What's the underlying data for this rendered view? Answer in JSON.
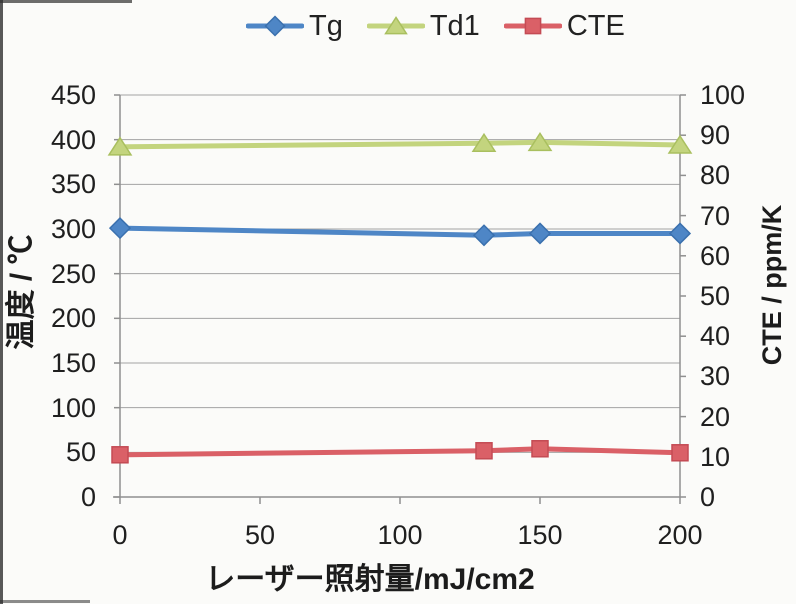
{
  "chart_data": {
    "type": "line",
    "title": "",
    "xlabel": "レーザー照射量/mJ/cm2",
    "ylabel_left": "温度 / ℃",
    "ylabel_right": "CTE / ppm/K",
    "x": [
      0,
      130,
      150,
      200
    ],
    "series": [
      {
        "name": "Tg",
        "axis": "left",
        "values": [
          301,
          293,
          295,
          295
        ],
        "color": "#4e86c6",
        "border": "#3a70ae",
        "marker": "diamond"
      },
      {
        "name": "Td1",
        "axis": "left",
        "values": [
          392,
          396,
          397,
          394
        ],
        "color": "#c3d47e",
        "border": "#a9bf5f",
        "marker": "triangle"
      },
      {
        "name": "CTE",
        "axis": "right",
        "values": [
          10.5,
          11.5,
          12,
          11
        ],
        "color": "#da6067",
        "border": "#c44b54",
        "marker": "square"
      }
    ],
    "xlim": [
      0,
      200
    ],
    "ylim_left": [
      0,
      450
    ],
    "ylim_right": [
      0,
      100
    ],
    "x_ticks": [
      0,
      50,
      100,
      150,
      200
    ],
    "left_ticks": [
      0,
      50,
      100,
      150,
      200,
      250,
      300,
      350,
      400,
      450
    ],
    "right_ticks": [
      0,
      10,
      20,
      30,
      40,
      50,
      60,
      70,
      80,
      90,
      100
    ],
    "grid": true,
    "legend_position": "top",
    "colors": {
      "grid": "#a3a3a3",
      "axis": "#8f8f8f",
      "text": "#1f1f1f",
      "background": "#fbfbf9"
    }
  }
}
